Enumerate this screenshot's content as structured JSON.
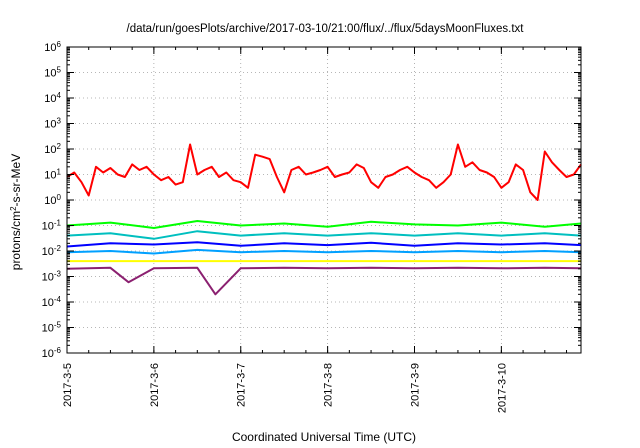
{
  "chart_data": {
    "type": "line",
    "title": "/data/run/goesPlots/archive/2017-03-10/21:00/flux/../flux/5daysMoonFluxes.txt",
    "xlabel": "Coordinated Universal Time (UTC)",
    "ylabel": "protons/cm²-s-sr-MeV",
    "ylabel_parts": {
      "pre": "protons/cm",
      "sup": "2",
      "post": "-s-sr-MeV"
    },
    "x_range": [
      "2017-03-05",
      "2017-03-10 22:00"
    ],
    "x_tick_labels": [
      "2017-3-5",
      "2017-3-6",
      "2017-3-7",
      "2017-3-8",
      "2017-3-9",
      "2017-3-10"
    ],
    "y_scale": "log",
    "ylim": [
      1e-06,
      1000000.0
    ],
    "y_tick_exponents": [
      -6,
      -5,
      -4,
      -3,
      -2,
      -1,
      0,
      1,
      2,
      3,
      4,
      5,
      6
    ],
    "grid": true,
    "series": [
      {
        "color": "#ff0000",
        "x": [
          "2017-03-05 00:00",
          "2017-03-05 02:00",
          "2017-03-05 04:00",
          "2017-03-05 06:00",
          "2017-03-05 08:00",
          "2017-03-05 10:00",
          "2017-03-05 12:00",
          "2017-03-05 14:00",
          "2017-03-05 16:00",
          "2017-03-05 18:00",
          "2017-03-05 20:00",
          "2017-03-05 22:00",
          "2017-03-06 00:00",
          "2017-03-06 02:00",
          "2017-03-06 04:00",
          "2017-03-06 06:00",
          "2017-03-06 08:00",
          "2017-03-06 10:00",
          "2017-03-06 12:00",
          "2017-03-06 14:00",
          "2017-03-06 16:00",
          "2017-03-06 18:00",
          "2017-03-06 20:00",
          "2017-03-06 22:00",
          "2017-03-07 00:00",
          "2017-03-07 02:00",
          "2017-03-07 04:00",
          "2017-03-07 06:00",
          "2017-03-07 08:00",
          "2017-03-07 10:00",
          "2017-03-07 12:00",
          "2017-03-07 14:00",
          "2017-03-07 16:00",
          "2017-03-07 18:00",
          "2017-03-07 20:00",
          "2017-03-07 22:00",
          "2017-03-08 00:00",
          "2017-03-08 02:00",
          "2017-03-08 04:00",
          "2017-03-08 06:00",
          "2017-03-08 08:00",
          "2017-03-08 10:00",
          "2017-03-08 12:00",
          "2017-03-08 14:00",
          "2017-03-08 16:00",
          "2017-03-08 18:00",
          "2017-03-08 20:00",
          "2017-03-08 22:00",
          "2017-03-09 00:00",
          "2017-03-09 02:00",
          "2017-03-09 04:00",
          "2017-03-09 06:00",
          "2017-03-09 08:00",
          "2017-03-09 10:00",
          "2017-03-09 12:00",
          "2017-03-09 14:00",
          "2017-03-09 16:00",
          "2017-03-09 18:00",
          "2017-03-09 20:00",
          "2017-03-09 22:00",
          "2017-03-10 00:00",
          "2017-03-10 02:00",
          "2017-03-10 04:00",
          "2017-03-10 06:00",
          "2017-03-10 08:00",
          "2017-03-10 10:00",
          "2017-03-10 12:00",
          "2017-03-10 14:00",
          "2017-03-10 16:00",
          "2017-03-10 18:00",
          "2017-03-10 20:00",
          "2017-03-10 22:00"
        ],
        "y": [
          8,
          12,
          5,
          1.5,
          20,
          12,
          18,
          10,
          8,
          25,
          15,
          20,
          10,
          6,
          8,
          4,
          5,
          150,
          10,
          15,
          20,
          8,
          12,
          6,
          5,
          3,
          60,
          50,
          40,
          8,
          2,
          15,
          20,
          10,
          12,
          15,
          20,
          8,
          10,
          12,
          25,
          18,
          5,
          3,
          8,
          10,
          15,
          20,
          12,
          8,
          6,
          3,
          5,
          10,
          150,
          20,
          30,
          15,
          12,
          8,
          3,
          5,
          25,
          15,
          2,
          1,
          80,
          30,
          15,
          8,
          10,
          25
        ]
      },
      {
        "color": "#00ff00",
        "x": [
          "2017-03-05 00:00",
          "2017-03-05 12:00",
          "2017-03-06 00:00",
          "2017-03-06 12:00",
          "2017-03-07 00:00",
          "2017-03-07 12:00",
          "2017-03-08 00:00",
          "2017-03-08 12:00",
          "2017-03-09 00:00",
          "2017-03-09 12:00",
          "2017-03-10 00:00",
          "2017-03-10 12:00",
          "2017-03-10 22:00"
        ],
        "y": [
          0.1,
          0.13,
          0.08,
          0.15,
          0.1,
          0.12,
          0.09,
          0.14,
          0.11,
          0.1,
          0.13,
          0.09,
          0.12
        ]
      },
      {
        "color": "#00bfbf",
        "x": [
          "2017-03-05 00:00",
          "2017-03-05 12:00",
          "2017-03-06 00:00",
          "2017-03-06 12:00",
          "2017-03-07 00:00",
          "2017-03-07 12:00",
          "2017-03-08 00:00",
          "2017-03-08 12:00",
          "2017-03-09 00:00",
          "2017-03-09 12:00",
          "2017-03-10 00:00",
          "2017-03-10 12:00",
          "2017-03-10 22:00"
        ],
        "y": [
          0.04,
          0.05,
          0.03,
          0.06,
          0.04,
          0.05,
          0.04,
          0.05,
          0.04,
          0.05,
          0.04,
          0.05,
          0.04
        ]
      },
      {
        "color": "#0000ff",
        "x": [
          "2017-03-05 00:00",
          "2017-03-05 12:00",
          "2017-03-06 00:00",
          "2017-03-06 12:00",
          "2017-03-07 00:00",
          "2017-03-07 12:00",
          "2017-03-08 00:00",
          "2017-03-08 12:00",
          "2017-03-09 00:00",
          "2017-03-09 12:00",
          "2017-03-10 00:00",
          "2017-03-10 12:00",
          "2017-03-10 22:00"
        ],
        "y": [
          0.015,
          0.02,
          0.018,
          0.022,
          0.016,
          0.02,
          0.017,
          0.021,
          0.016,
          0.02,
          0.018,
          0.02,
          0.017
        ]
      },
      {
        "color": "#00a0ff",
        "x": [
          "2017-03-05 00:00",
          "2017-03-05 12:00",
          "2017-03-06 00:00",
          "2017-03-06 12:00",
          "2017-03-07 00:00",
          "2017-03-07 12:00",
          "2017-03-08 00:00",
          "2017-03-08 12:00",
          "2017-03-09 00:00",
          "2017-03-09 12:00",
          "2017-03-10 00:00",
          "2017-03-10 12:00",
          "2017-03-10 22:00"
        ],
        "y": [
          0.009,
          0.01,
          0.008,
          0.011,
          0.009,
          0.01,
          0.009,
          0.01,
          0.009,
          0.01,
          0.009,
          0.01,
          0.009
        ]
      },
      {
        "color": "#ffff00",
        "x": [
          "2017-03-05 00:00",
          "2017-03-05 12:00",
          "2017-03-06 00:00",
          "2017-03-06 12:00",
          "2017-03-07 00:00",
          "2017-03-07 12:00",
          "2017-03-08 00:00",
          "2017-03-08 12:00",
          "2017-03-09 00:00",
          "2017-03-09 12:00",
          "2017-03-10 00:00",
          "2017-03-10 12:00",
          "2017-03-10 22:00"
        ],
        "y": [
          0.004,
          0.004,
          0.004,
          0.004,
          0.004,
          0.004,
          0.004,
          0.004,
          0.004,
          0.004,
          0.004,
          0.004,
          0.004
        ]
      },
      {
        "color": "#8b2070",
        "x": [
          "2017-03-05 00:00",
          "2017-03-05 12:00",
          "2017-03-05 17:00",
          "2017-03-06 00:00",
          "2017-03-06 12:00",
          "2017-03-06 17:00",
          "2017-03-07 00:00",
          "2017-03-07 12:00",
          "2017-03-08 00:00",
          "2017-03-08 12:00",
          "2017-03-09 00:00",
          "2017-03-09 12:00",
          "2017-03-10 00:00",
          "2017-03-10 12:00",
          "2017-03-10 22:00"
        ],
        "y": [
          0.002,
          0.0022,
          0.0006,
          0.0021,
          0.0022,
          0.0002,
          0.0021,
          0.0022,
          0.0021,
          0.0022,
          0.0021,
          0.0022,
          0.0021,
          0.0022,
          0.0021
        ]
      }
    ]
  }
}
